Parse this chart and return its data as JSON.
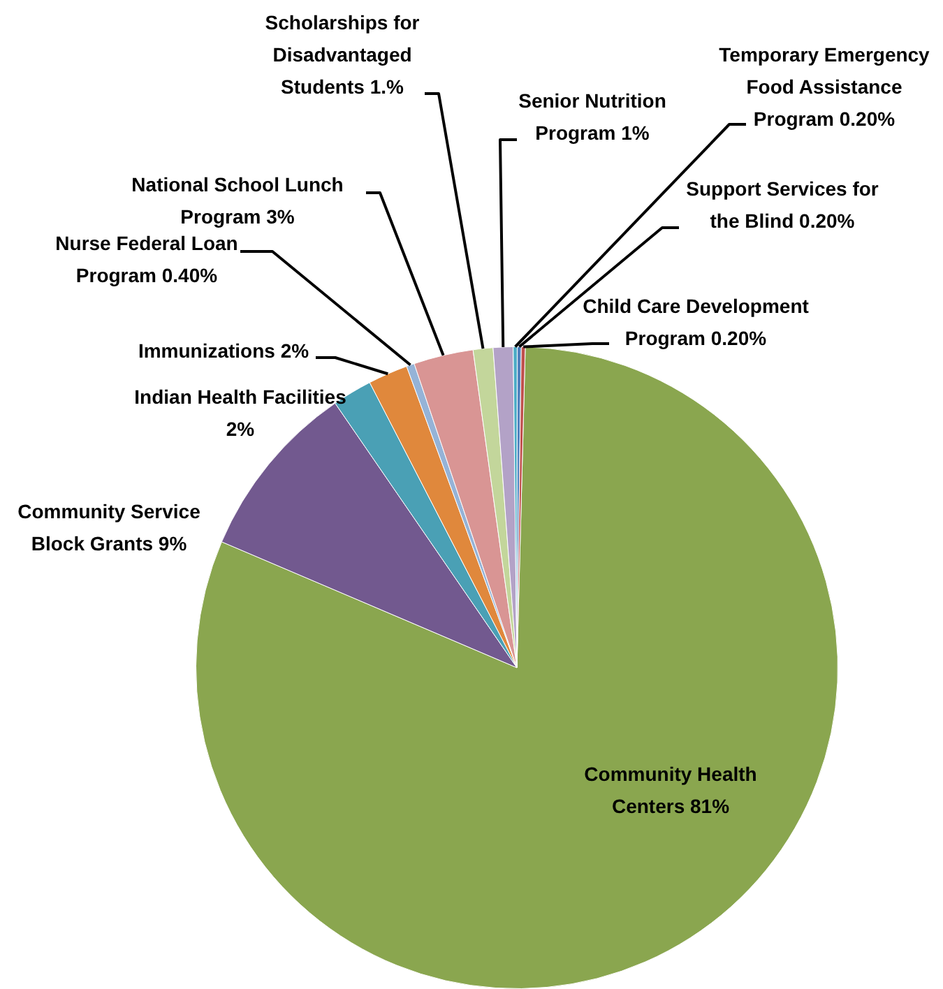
{
  "chart_data": {
    "type": "pie",
    "categories": [
      "Community Health Centers",
      "Community Service Block Grants",
      "Indian Health Facilities",
      "Immunizations",
      "Nurse Federal Loan Program",
      "National School Lunch Program",
      "Scholarships for Disadvantaged Students",
      "Senior Nutrition Program",
      "Temporary Emergency Food Assistance Program",
      "Support Services for the Blind",
      "Child Care Development Program"
    ],
    "values": [
      81,
      9,
      2,
      2,
      0.4,
      3,
      1,
      1,
      0.2,
      0.2,
      0.2
    ],
    "value_labels": [
      "81%",
      "9%",
      "2%",
      "2%",
      "0.40%",
      "3%",
      "1.%",
      "1%",
      "0.20%",
      "0.20%",
      "0.20%"
    ],
    "colors": [
      "#8aa64f",
      "#72598f",
      "#4aa0b5",
      "#e0883c",
      "#95b3d7",
      "#d99594",
      "#c3d69b",
      "#b3a2c7",
      "#4bacc6",
      "#4f81bd",
      "#c0504d"
    ],
    "legend": false
  }
}
